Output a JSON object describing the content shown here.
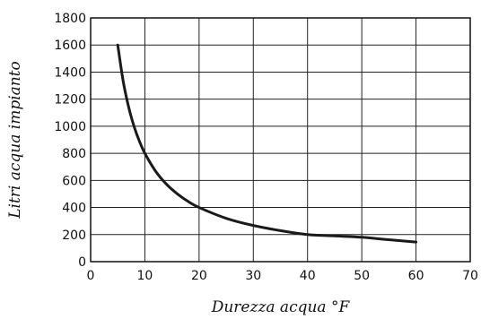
{
  "chart_data": {
    "type": "line",
    "xlabel": "Durezza acqua °F",
    "ylabel": "Litri acqua impianto",
    "xlim": [
      0,
      70
    ],
    "ylim": [
      0,
      1800
    ],
    "xticks": [
      0,
      10,
      20,
      30,
      40,
      50,
      60,
      70
    ],
    "yticks": [
      0,
      200,
      400,
      600,
      800,
      1000,
      1200,
      1400,
      1600,
      1800
    ],
    "grid": true,
    "series": [
      {
        "x": [
          5,
          6,
          7,
          8,
          9,
          10,
          12,
          14,
          16,
          18,
          20,
          25,
          30,
          35,
          40,
          45,
          50,
          55,
          60
        ],
        "y": [
          1600,
          1333,
          1143,
          1000,
          889,
          800,
          667,
          571,
          500,
          444,
          400,
          320,
          267,
          229,
          200,
          190,
          180,
          162,
          145
        ],
        "color": "#1a1a1a"
      }
    ]
  }
}
